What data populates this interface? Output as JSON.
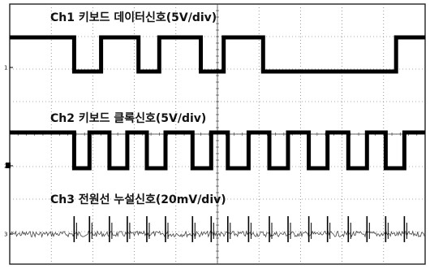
{
  "chart_data": {
    "type": "line",
    "title": "",
    "xlabel": "",
    "ylabel": "",
    "grid": true,
    "divisions": {
      "x": 10,
      "y": 8
    },
    "channel_markers": [
      "1",
      "2",
      "3"
    ],
    "series": [
      {
        "name": "Ch1 키보드 데이터신호(5V/div)",
        "label": "Ch1 키보드 데이터신호(5V/div)",
        "unit": "5V/div",
        "kind": "digital",
        "edges": [
          0,
          1.55,
          2.2,
          3.1,
          3.6,
          4.6,
          5.15,
          6.1,
          9.3,
          10
        ],
        "levels": [
          1,
          0,
          1,
          0,
          1,
          0,
          1,
          0,
          1
        ]
      },
      {
        "name": "Ch2 키보드 클록신호(5V/div)",
        "label": "Ch2 키보드 클록신호(5V/div)",
        "unit": "5V/div",
        "kind": "digital",
        "edges": [
          0,
          1.55,
          1.92,
          2.4,
          2.83,
          3.3,
          3.75,
          4.4,
          4.85,
          5.25,
          5.75,
          6.25,
          6.7,
          7.2,
          7.65,
          8.15,
          8.6,
          9.05,
          9.5,
          10
        ],
        "levels": [
          1,
          0,
          1,
          0,
          1,
          0,
          1,
          0,
          1,
          0,
          1,
          0,
          1,
          0,
          1,
          0,
          1,
          0,
          1
        ]
      },
      {
        "name": "Ch3 전원선 누설신호(20mV/div)",
        "label": "Ch3 전원선 누설신호(20mV/div)",
        "unit": "20mV/div",
        "kind": "noise",
        "spikes": [
          1.55,
          1.92,
          2.4,
          2.83,
          3.3,
          3.75,
          4.4,
          4.85,
          5.25,
          5.75,
          6.25,
          6.7,
          7.2,
          7.65,
          8.15,
          8.6,
          9.05,
          9.5
        ]
      }
    ]
  }
}
